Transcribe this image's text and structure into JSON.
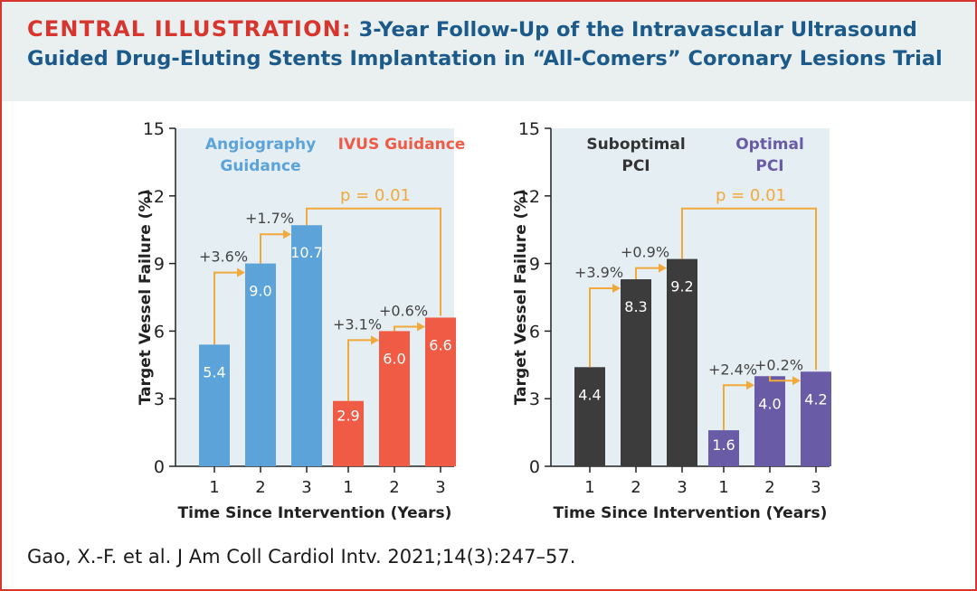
{
  "header": {
    "label": "CENTRAL ILLUSTRATION:",
    "title": "3-Year Follow-Up of the Intravascular Ultrasound Guided Drug-Eluting Stents Implantation in “All-Comers” Coronary Lesions Trial"
  },
  "citation": "Gao, X.-F. et al. J Am Coll Cardiol Intv. 2021;14(3):247–57.",
  "chart_data": [
    {
      "type": "bar",
      "title": "",
      "xlabel": "Time Since Intervention (Years)",
      "ylabel": "Target Vessel Failure (%)",
      "ylim": [
        0,
        15
      ],
      "yticks": [
        0,
        3,
        6,
        9,
        12,
        15
      ],
      "grid": false,
      "categories": [
        "1",
        "2",
        "3"
      ],
      "series": [
        {
          "name": "Angiography Guidance",
          "color": "#5ba3d9",
          "values": [
            5.4,
            9.0,
            10.7
          ],
          "labels": [
            "5.4",
            "9.0",
            "10.7"
          ],
          "increments": [
            "+3.6%",
            "+1.7%"
          ]
        },
        {
          "name": "IVUS Guidance",
          "color": "#ef5b45",
          "values": [
            2.9,
            6.0,
            6.6
          ],
          "labels": [
            "2.9",
            "6.0",
            "6.6"
          ],
          "increments": [
            "+3.1%",
            "+0.6%"
          ]
        }
      ],
      "comparison": "p = 0.01"
    },
    {
      "type": "bar",
      "title": "",
      "xlabel": "Time Since Intervention (Years)",
      "ylabel": "Target Vessel Failure (%)",
      "ylim": [
        0,
        15
      ],
      "yticks": [
        0,
        3,
        6,
        9,
        12,
        15
      ],
      "grid": false,
      "categories": [
        "1",
        "2",
        "3"
      ],
      "series": [
        {
          "name": "Suboptimal PCI",
          "color": "#3c3c3c",
          "values": [
            4.4,
            8.3,
            9.2
          ],
          "labels": [
            "4.4",
            "8.3",
            "9.2"
          ],
          "increments": [
            "+3.9%",
            "+0.9%"
          ]
        },
        {
          "name": "Optimal PCI",
          "color": "#6a5ba6",
          "values": [
            1.6,
            4.0,
            4.2
          ],
          "labels": [
            "1.6",
            "4.0",
            "4.2"
          ],
          "increments": [
            "+2.4%",
            "+0.2%"
          ]
        }
      ],
      "comparison": "p = 0.01"
    }
  ]
}
